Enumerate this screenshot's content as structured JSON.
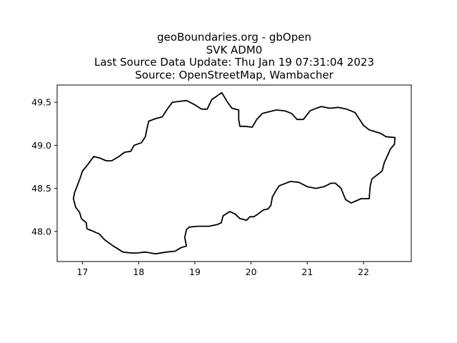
{
  "title": {
    "lines": [
      "geoBoundaries.org - gbOpen",
      "SVK ADM0",
      "Last Source Data Update: Thu Jan 19 07:31:04 2023",
      "Source: OpenStreetMap, Wambacher"
    ]
  },
  "chart_data": {
    "type": "map",
    "xlim": [
      16.55,
      22.85
    ],
    "ylim": [
      47.65,
      49.7
    ],
    "x_ticks": [
      "17",
      "18",
      "19",
      "20",
      "21",
      "22"
    ],
    "y_ticks": [
      "48.0",
      "48.5",
      "49.0",
      "49.5"
    ],
    "grid": false,
    "style": {
      "line_color": "#000000",
      "background": "#ffffff"
    },
    "boundary": [
      [
        16.84,
        48.38
      ],
      [
        16.86,
        48.45
      ],
      [
        16.92,
        48.55
      ],
      [
        16.96,
        48.62
      ],
      [
        17.0,
        48.7
      ],
      [
        17.1,
        48.78
      ],
      [
        17.2,
        48.87
      ],
      [
        17.32,
        48.85
      ],
      [
        17.42,
        48.82
      ],
      [
        17.52,
        48.82
      ],
      [
        17.65,
        48.87
      ],
      [
        17.75,
        48.92
      ],
      [
        17.86,
        48.93
      ],
      [
        17.92,
        49.0
      ],
      [
        18.05,
        49.03
      ],
      [
        18.12,
        49.1
      ],
      [
        18.15,
        49.2
      ],
      [
        18.18,
        49.28
      ],
      [
        18.3,
        49.31
      ],
      [
        18.42,
        49.33
      ],
      [
        18.52,
        49.43
      ],
      [
        18.6,
        49.5
      ],
      [
        18.72,
        49.51
      ],
      [
        18.85,
        49.52
      ],
      [
        19.0,
        49.47
      ],
      [
        19.12,
        49.42
      ],
      [
        19.22,
        49.42
      ],
      [
        19.3,
        49.53
      ],
      [
        19.43,
        49.59
      ],
      [
        19.48,
        49.61
      ],
      [
        19.58,
        49.5
      ],
      [
        19.66,
        49.43
      ],
      [
        19.78,
        49.41
      ],
      [
        19.78,
        49.3
      ],
      [
        19.8,
        49.22
      ],
      [
        19.9,
        49.22
      ],
      [
        20.02,
        49.21
      ],
      [
        20.1,
        49.3
      ],
      [
        20.2,
        49.37
      ],
      [
        20.32,
        49.39
      ],
      [
        20.45,
        49.41
      ],
      [
        20.6,
        49.4
      ],
      [
        20.72,
        49.37
      ],
      [
        20.82,
        49.3
      ],
      [
        20.93,
        49.3
      ],
      [
        21.05,
        49.4
      ],
      [
        21.12,
        49.42
      ],
      [
        21.25,
        49.45
      ],
      [
        21.4,
        49.43
      ],
      [
        21.55,
        49.44
      ],
      [
        21.7,
        49.42
      ],
      [
        21.85,
        49.38
      ],
      [
        22.0,
        49.23
      ],
      [
        22.1,
        49.18
      ],
      [
        22.2,
        49.16
      ],
      [
        22.3,
        49.14
      ],
      [
        22.4,
        49.1
      ],
      [
        22.56,
        49.09
      ],
      [
        22.55,
        49.01
      ],
      [
        22.48,
        48.96
      ],
      [
        22.42,
        48.87
      ],
      [
        22.37,
        48.8
      ],
      [
        22.33,
        48.7
      ],
      [
        22.15,
        48.61
      ],
      [
        22.12,
        48.53
      ],
      [
        22.1,
        48.38
      ],
      [
        21.96,
        48.38
      ],
      [
        21.78,
        48.33
      ],
      [
        21.68,
        48.37
      ],
      [
        21.6,
        48.5
      ],
      [
        21.5,
        48.56
      ],
      [
        21.42,
        48.56
      ],
      [
        21.3,
        48.52
      ],
      [
        21.15,
        48.5
      ],
      [
        21.0,
        48.52
      ],
      [
        20.85,
        48.57
      ],
      [
        20.7,
        48.58
      ],
      [
        20.58,
        48.55
      ],
      [
        20.5,
        48.53
      ],
      [
        20.45,
        48.48
      ],
      [
        20.38,
        48.4
      ],
      [
        20.35,
        48.3
      ],
      [
        20.3,
        48.26
      ],
      [
        20.22,
        48.25
      ],
      [
        20.12,
        48.2
      ],
      [
        20.05,
        48.17
      ],
      [
        19.98,
        48.17
      ],
      [
        19.92,
        48.13
      ],
      [
        19.8,
        48.15
      ],
      [
        19.72,
        48.2
      ],
      [
        19.62,
        48.23
      ],
      [
        19.5,
        48.18
      ],
      [
        19.47,
        48.1
      ],
      [
        19.4,
        48.08
      ],
      [
        19.25,
        48.06
      ],
      [
        19.05,
        48.06
      ],
      [
        18.9,
        48.05
      ],
      [
        18.85,
        48.02
      ],
      [
        18.82,
        47.93
      ],
      [
        18.85,
        47.83
      ],
      [
        18.75,
        47.81
      ],
      [
        18.65,
        47.77
      ],
      [
        18.5,
        47.76
      ],
      [
        18.3,
        47.74
      ],
      [
        18.12,
        47.76
      ],
      [
        17.98,
        47.75
      ],
      [
        17.86,
        47.75
      ],
      [
        17.72,
        47.76
      ],
      [
        17.55,
        47.83
      ],
      [
        17.4,
        47.9
      ],
      [
        17.3,
        47.97
      ],
      [
        17.16,
        48.01
      ],
      [
        17.08,
        48.03
      ],
      [
        17.07,
        48.1
      ],
      [
        16.98,
        48.15
      ],
      [
        16.95,
        48.22
      ],
      [
        16.88,
        48.28
      ],
      [
        16.84,
        48.38
      ]
    ]
  }
}
